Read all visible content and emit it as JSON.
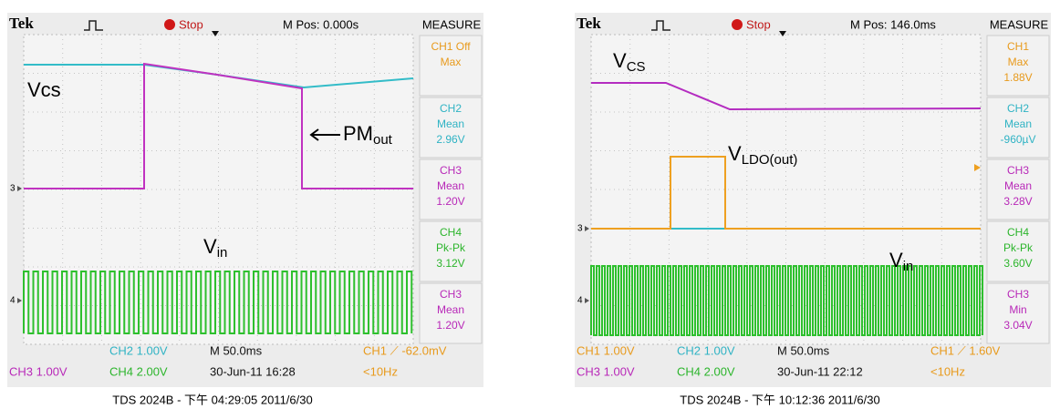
{
  "scopes": [
    {
      "header": {
        "brand": "Tek",
        "state": "Stop",
        "position": "M Pos: 0.000s",
        "measure_title": "MEASURE"
      },
      "measures": [
        {
          "lines": [
            "CH1 Off",
            "Max"
          ],
          "color": "#e89a1c"
        },
        {
          "lines": [
            "CH2",
            "Mean",
            "2.96V"
          ],
          "color": "#2fb3c4"
        },
        {
          "lines": [
            "CH3",
            "Mean",
            "1.20V"
          ],
          "color": "#b828b8"
        },
        {
          "lines": [
            "CH4",
            "Pk-Pk",
            "3.12V"
          ],
          "color": "#2bb52b"
        },
        {
          "lines": [
            "CH3",
            "Mean",
            "1.20V"
          ],
          "color": "#b828b8"
        }
      ],
      "footer_rows": [
        [
          null,
          {
            "text": "CH2  1.00V",
            "color": "#2fb3c4"
          },
          {
            "text": "M 50.0ms",
            "color": "#111"
          },
          {
            "text": "CH1  ⟋  -62.0mV",
            "color": "#e89a1c"
          }
        ],
        [
          {
            "text": "CH3  1.00V",
            "color": "#b828b8"
          },
          {
            "text": "CH4  2.00V",
            "color": "#2bb52b"
          },
          {
            "text": "30-Jun-11 16:28",
            "color": "#111"
          },
          {
            "text": "<10Hz",
            "color": "#e89a1c"
          }
        ]
      ],
      "markers": [
        "3",
        "4"
      ],
      "annotations": [
        {
          "main": "Vcs",
          "sub": null
        },
        {
          "main": "PM",
          "sub": "out"
        },
        {
          "main": "V",
          "sub": "in"
        }
      ],
      "caption": "TDS 2024B - 下午 04:29:05   2011/6/30"
    },
    {
      "header": {
        "brand": "Tek",
        "state": "Stop",
        "position": "M Pos: 146.0ms",
        "measure_title": "MEASURE"
      },
      "measures": [
        {
          "lines": [
            "CH1",
            "Max",
            "1.88V"
          ],
          "color": "#e89a1c"
        },
        {
          "lines": [
            "CH2",
            "Mean",
            "-960µV"
          ],
          "color": "#2fb3c4"
        },
        {
          "lines": [
            "CH3",
            "Mean",
            "3.28V"
          ],
          "color": "#b828b8"
        },
        {
          "lines": [
            "CH4",
            "Pk-Pk",
            "3.60V"
          ],
          "color": "#2bb52b"
        },
        {
          "lines": [
            "CH3",
            "Min",
            "3.04V"
          ],
          "color": "#b828b8"
        }
      ],
      "footer_rows": [
        [
          {
            "text": "CH1  1.00V",
            "color": "#e89a1c"
          },
          {
            "text": "CH2  1.00V",
            "color": "#2fb3c4"
          },
          {
            "text": "M 50.0ms",
            "color": "#111"
          },
          {
            "text": "CH1  ⟋  1.60V",
            "color": "#e89a1c"
          }
        ],
        [
          {
            "text": "CH3  1.00V",
            "color": "#b828b8"
          },
          {
            "text": "CH4  2.00V",
            "color": "#2bb52b"
          },
          {
            "text": "30-Jun-11 22:12",
            "color": "#111"
          },
          {
            "text": "<10Hz",
            "color": "#e89a1c"
          }
        ]
      ],
      "markers": [
        "3",
        "4"
      ],
      "annotations": [
        {
          "main": "V",
          "sub": "CS"
        },
        {
          "main": "V",
          "sub": "LDO(out)"
        },
        {
          "main": "V",
          "sub": "in"
        }
      ],
      "caption": "TDS 2024B - 下午 10:12:36   2011/6/30"
    }
  ]
}
